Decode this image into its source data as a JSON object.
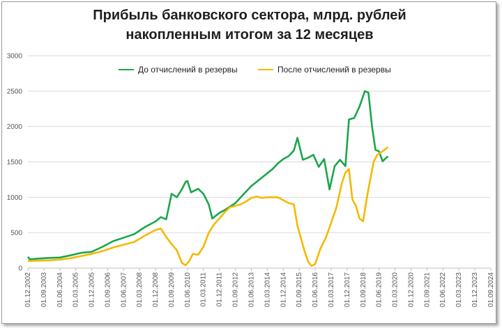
{
  "chart_data": {
    "type": "line",
    "title_line1": "Прибыль банковского сектора, млрд. рублей",
    "title_line2": "накопленным итогом за 12 месяцев",
    "ylim": [
      0,
      3000
    ],
    "yticks": [
      0,
      500,
      1000,
      1500,
      2000,
      2500,
      3000
    ],
    "xlim": [
      "2002-12-01",
      "2024-09-01"
    ],
    "xticks": [
      "01.12.2002",
      "01.09.2003",
      "01.06.2004",
      "01.03.2005",
      "01.12.2005",
      "01.09.2006",
      "01.06.2007",
      "01.03.2008",
      "01.12.2008",
      "01.09.2009",
      "01.06.2010",
      "01.03.2011",
      "01.12.2011",
      "01.09.2012",
      "01.06.2013",
      "01.03.2014",
      "01.12.2014",
      "01.09.2015",
      "01.06.2016",
      "01.03.2017",
      "01.12.2017",
      "01.09.2018",
      "01.06.2019",
      "01.03.2020",
      "01.12.2020",
      "01.09.2021",
      "01.06.2022",
      "01.03.2023",
      "01.12.2023",
      "01.09.2024"
    ],
    "grid": "horizontal",
    "legend_position": "top",
    "series": [
      {
        "name": "До отчислений в резервы",
        "color": "#1aa64a",
        "points": [
          [
            "2002-12-01",
            160
          ],
          [
            "2003-01-01",
            125
          ],
          [
            "2003-06-01",
            135
          ],
          [
            "2003-12-01",
            145
          ],
          [
            "2004-06-01",
            150
          ],
          [
            "2004-12-01",
            180
          ],
          [
            "2005-06-01",
            215
          ],
          [
            "2005-12-01",
            230
          ],
          [
            "2006-06-01",
            300
          ],
          [
            "2006-12-01",
            380
          ],
          [
            "2007-06-01",
            430
          ],
          [
            "2007-12-01",
            480
          ],
          [
            "2008-06-01",
            580
          ],
          [
            "2008-12-01",
            660
          ],
          [
            "2009-03-01",
            720
          ],
          [
            "2009-06-01",
            690
          ],
          [
            "2009-09-01",
            1050
          ],
          [
            "2009-12-01",
            1000
          ],
          [
            "2010-03-01",
            1120
          ],
          [
            "2010-05-01",
            1220
          ],
          [
            "2010-06-01",
            1230
          ],
          [
            "2010-08-01",
            1070
          ],
          [
            "2010-12-01",
            1120
          ],
          [
            "2011-03-01",
            1050
          ],
          [
            "2011-06-01",
            900
          ],
          [
            "2011-08-01",
            700
          ],
          [
            "2011-12-01",
            780
          ],
          [
            "2012-03-01",
            820
          ],
          [
            "2012-06-01",
            870
          ],
          [
            "2012-09-01",
            920
          ],
          [
            "2012-12-01",
            1000
          ],
          [
            "2013-03-01",
            1080
          ],
          [
            "2013-06-01",
            1160
          ],
          [
            "2013-12-01",
            1280
          ],
          [
            "2014-06-01",
            1400
          ],
          [
            "2014-09-01",
            1480
          ],
          [
            "2014-12-01",
            1540
          ],
          [
            "2015-03-01",
            1580
          ],
          [
            "2015-06-01",
            1660
          ],
          [
            "2015-08-01",
            1840
          ],
          [
            "2015-11-01",
            1530
          ],
          [
            "2016-02-01",
            1560
          ],
          [
            "2016-05-01",
            1600
          ],
          [
            "2016-08-01",
            1430
          ],
          [
            "2016-11-01",
            1540
          ],
          [
            "2017-02-01",
            1110
          ],
          [
            "2017-05-01",
            1440
          ],
          [
            "2017-08-01",
            1530
          ],
          [
            "2017-11-01",
            1440
          ],
          [
            "2018-01-01",
            2100
          ],
          [
            "2018-04-01",
            2120
          ],
          [
            "2018-07-01",
            2280
          ],
          [
            "2018-10-01",
            2500
          ],
          [
            "2018-12-01",
            2480
          ],
          [
            "2019-02-01",
            2000
          ],
          [
            "2019-04-01",
            1670
          ],
          [
            "2019-06-01",
            1650
          ],
          [
            "2019-08-01",
            1510
          ],
          [
            "2019-11-01",
            1580
          ]
        ]
      },
      {
        "name": "После отчислений в резервы",
        "color": "#f5b800",
        "points": [
          [
            "2002-12-01",
            100
          ],
          [
            "2003-06-01",
            105
          ],
          [
            "2003-12-01",
            110
          ],
          [
            "2004-06-01",
            120
          ],
          [
            "2004-12-01",
            140
          ],
          [
            "2005-06-01",
            170
          ],
          [
            "2005-12-01",
            200
          ],
          [
            "2006-06-01",
            240
          ],
          [
            "2006-12-01",
            290
          ],
          [
            "2007-06-01",
            330
          ],
          [
            "2007-12-01",
            370
          ],
          [
            "2008-06-01",
            460
          ],
          [
            "2008-12-01",
            540
          ],
          [
            "2009-03-01",
            560
          ],
          [
            "2009-06-01",
            440
          ],
          [
            "2009-09-01",
            340
          ],
          [
            "2009-12-01",
            250
          ],
          [
            "2010-03-01",
            70
          ],
          [
            "2010-05-01",
            40
          ],
          [
            "2010-07-01",
            100
          ],
          [
            "2010-09-01",
            200
          ],
          [
            "2010-12-01",
            190
          ],
          [
            "2011-03-01",
            300
          ],
          [
            "2011-06-01",
            500
          ],
          [
            "2011-09-01",
            620
          ],
          [
            "2011-12-01",
            700
          ],
          [
            "2012-03-01",
            790
          ],
          [
            "2012-06-01",
            860
          ],
          [
            "2012-09-01",
            880
          ],
          [
            "2012-12-01",
            900
          ],
          [
            "2013-03-01",
            940
          ],
          [
            "2013-06-01",
            990
          ],
          [
            "2013-09-01",
            1010
          ],
          [
            "2013-12-01",
            990
          ],
          [
            "2014-03-01",
            1000
          ],
          [
            "2014-06-01",
            1000
          ],
          [
            "2014-09-01",
            1000
          ],
          [
            "2014-12-01",
            960
          ],
          [
            "2015-03-01",
            920
          ],
          [
            "2015-06-01",
            900
          ],
          [
            "2015-08-01",
            600
          ],
          [
            "2015-10-01",
            420
          ],
          [
            "2015-12-01",
            240
          ],
          [
            "2016-02-01",
            90
          ],
          [
            "2016-04-01",
            30
          ],
          [
            "2016-06-01",
            60
          ],
          [
            "2016-09-01",
            280
          ],
          [
            "2016-12-01",
            430
          ],
          [
            "2017-03-01",
            640
          ],
          [
            "2017-06-01",
            860
          ],
          [
            "2017-09-01",
            1200
          ],
          [
            "2017-11-01",
            1350
          ],
          [
            "2018-01-01",
            1400
          ],
          [
            "2018-03-01",
            970
          ],
          [
            "2018-05-01",
            880
          ],
          [
            "2018-07-01",
            700
          ],
          [
            "2018-09-01",
            660
          ],
          [
            "2018-11-01",
            980
          ],
          [
            "2019-01-01",
            1250
          ],
          [
            "2019-03-01",
            1500
          ],
          [
            "2019-05-01",
            1600
          ],
          [
            "2019-08-01",
            1650
          ],
          [
            "2019-11-01",
            1710
          ]
        ]
      }
    ]
  }
}
